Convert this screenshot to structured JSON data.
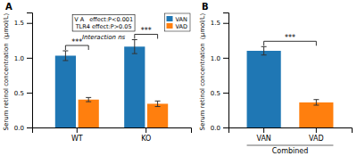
{
  "chart_data": [
    {
      "type": "bar",
      "title": "A",
      "ylabel": "Serum retinol concentration（μmol/L）",
      "categories": [
        "WT",
        "KO"
      ],
      "series": [
        {
          "name": "VAN",
          "values": [
            1.03,
            1.16
          ],
          "errors": [
            0.07,
            0.1
          ]
        },
        {
          "name": "VAD",
          "values": [
            0.4,
            0.34
          ],
          "errors": [
            0.03,
            0.04
          ]
        }
      ],
      "ylim": [
        0,
        1.65
      ],
      "yticks": [
        {
          "value": 0,
          "label": "0.0"
        },
        0.5,
        {
          "value": 1,
          "label": "1.0"
        },
        1.5
      ],
      "legend": "upper right",
      "annotations": [
        "V A   effect:P<0.001\nTLR4 effect:P>0.05",
        "Interaction ns"
      ],
      "significance_labels": [
        "***",
        "***"
      ]
    },
    {
      "type": "bar",
      "title": "B",
      "ylabel": "Serum retinol concentration（μmol/L）",
      "xlabel": "Combined",
      "categories": [
        "VAN",
        "VAD"
      ],
      "values": [
        1.1,
        0.36
      ],
      "errors": [
        0.06,
        0.04
      ],
      "ylim": [
        0,
        1.65
      ],
      "yticks": [
        {
          "value": 0,
          "label": "0.0"
        },
        0.5,
        {
          "value": 1,
          "label": "1.0"
        },
        1.5
      ],
      "significance_labels": [
        "***"
      ]
    }
  ]
}
